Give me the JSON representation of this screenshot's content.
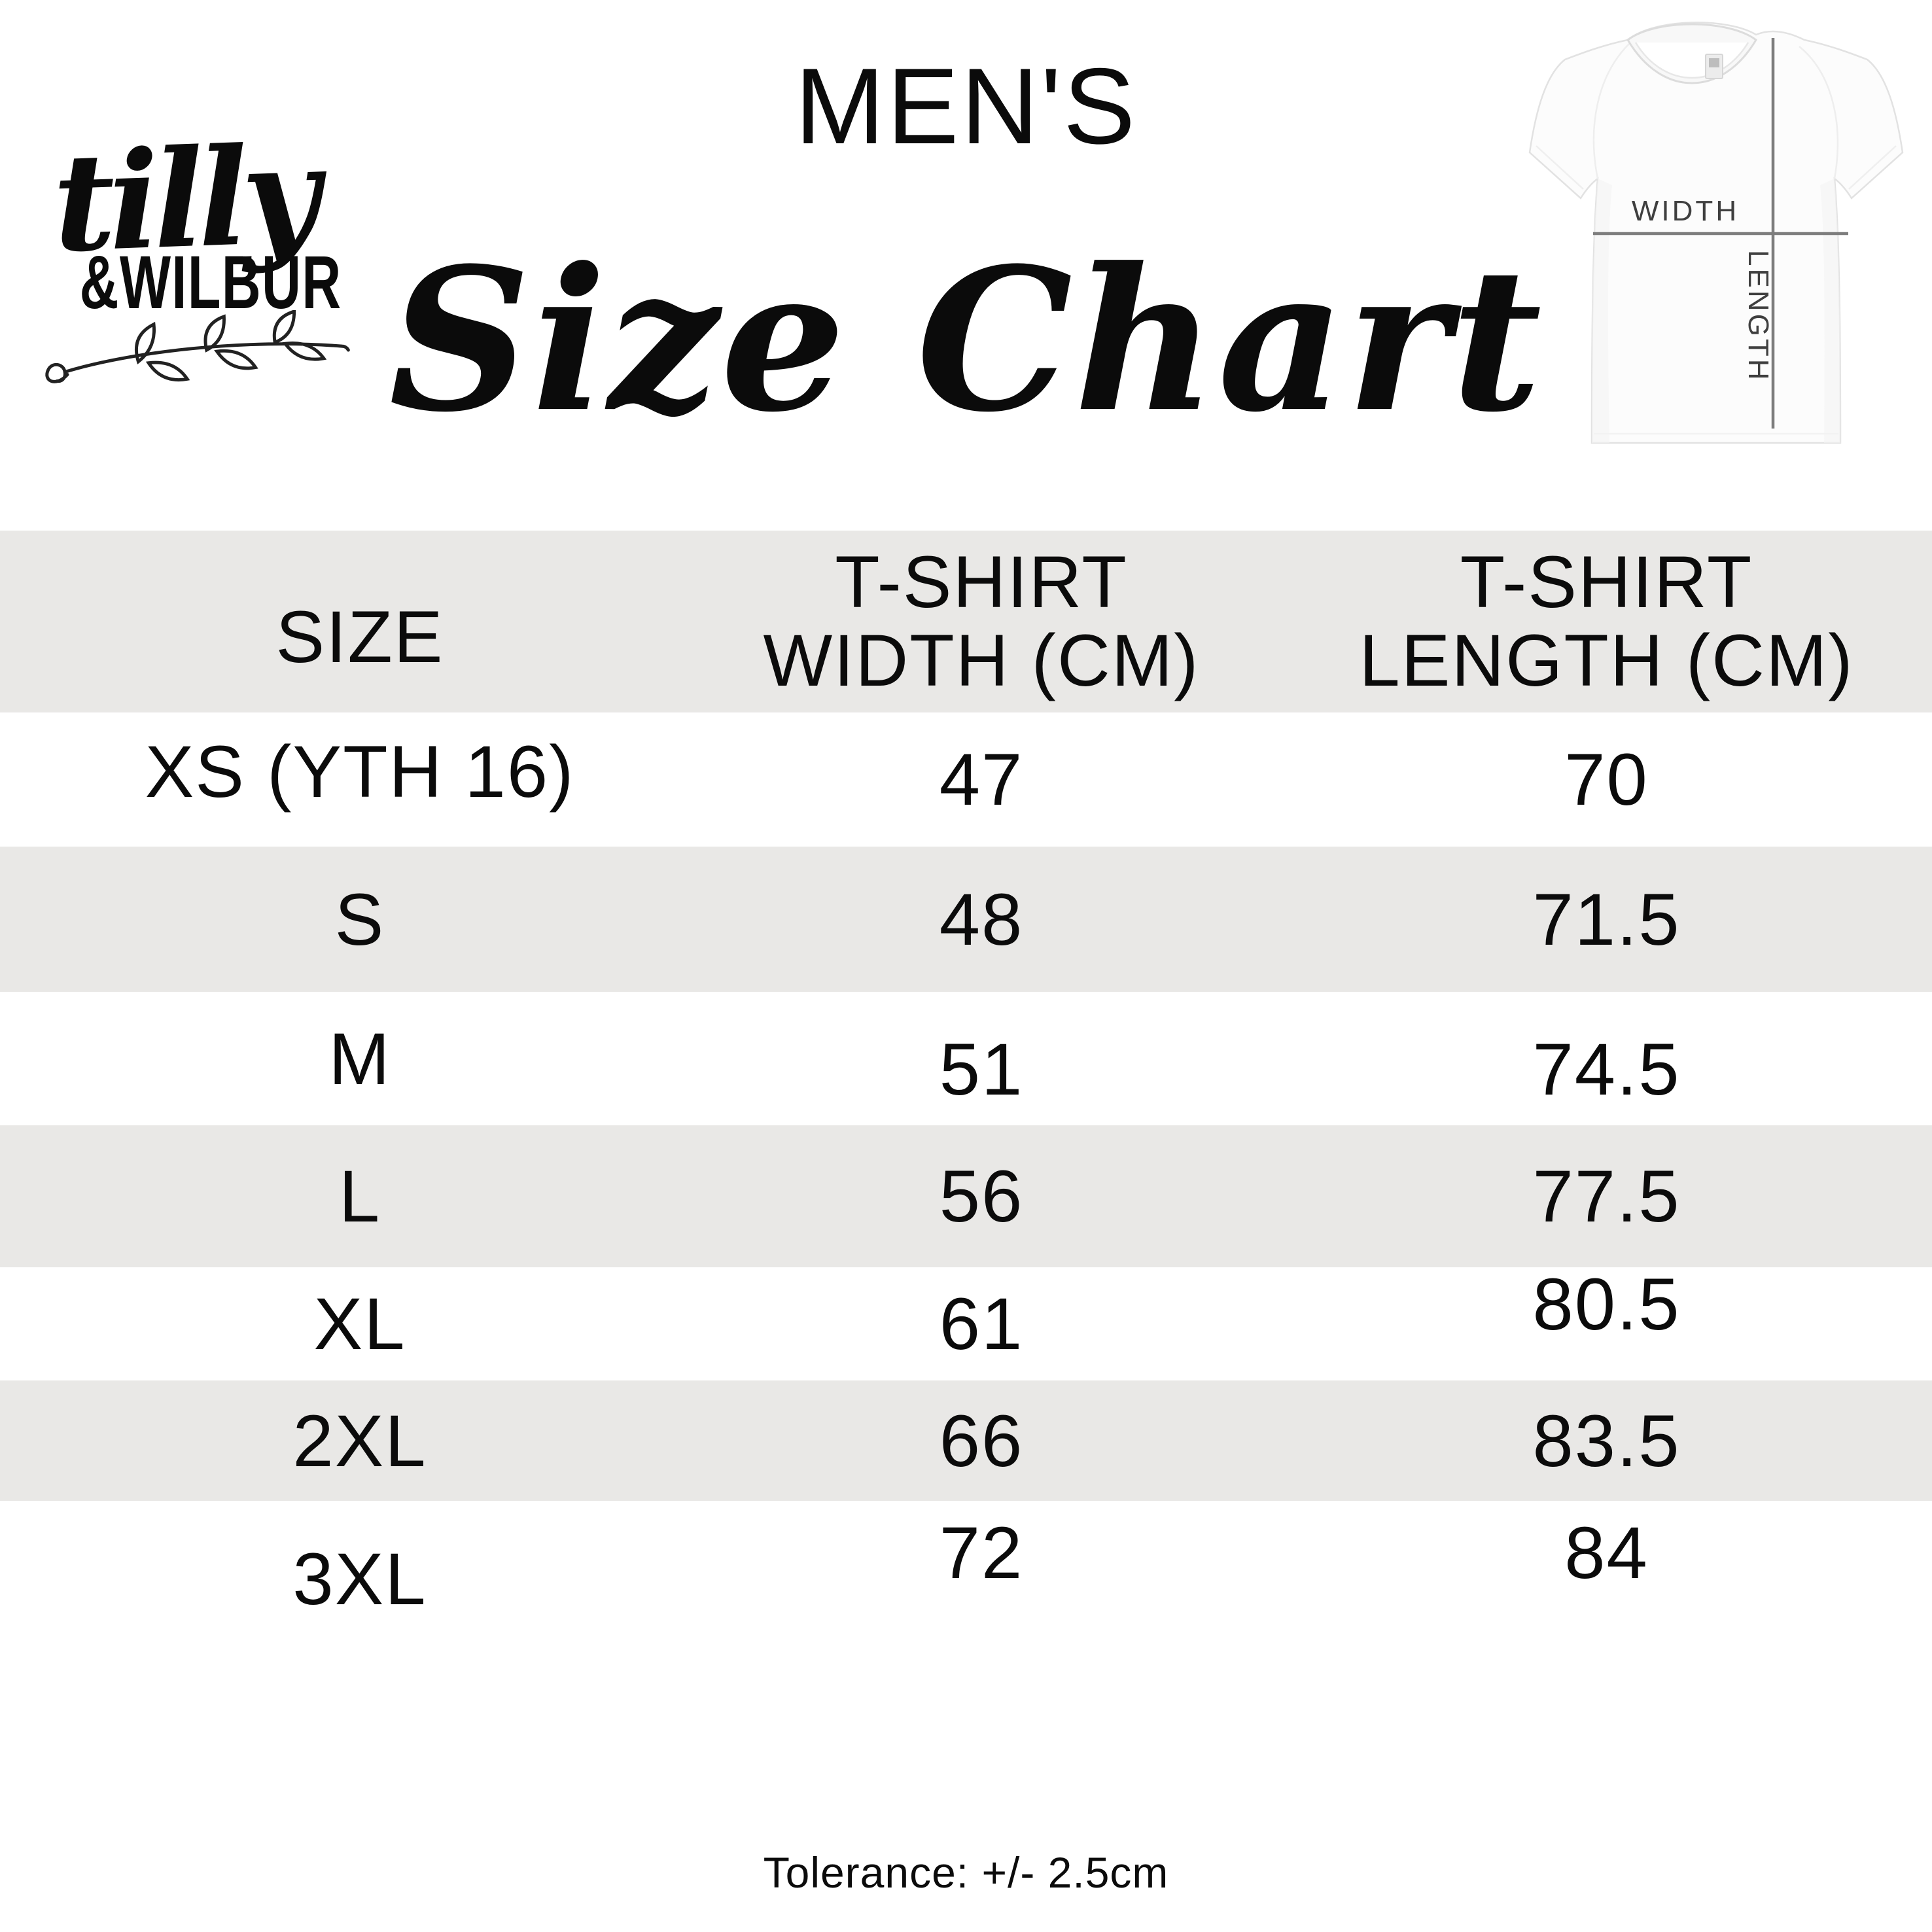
{
  "brand": {
    "script_name": "tilly",
    "caps_name": "&WILBUR"
  },
  "page": {
    "category": "MEN'S",
    "title": "Size Chart"
  },
  "diagram": {
    "width_label": "WIDTH",
    "length_label": "LENGTH"
  },
  "table": {
    "columns": [
      "SIZE",
      "T-SHIRT\nWIDTH (CM)",
      "T-SHIRT\nLENGTH (CM)"
    ],
    "rows": [
      {
        "size": "XS (YTH 16)",
        "width_cm": "47",
        "length_cm": "70"
      },
      {
        "size": "S",
        "width_cm": "48",
        "length_cm": "71.5"
      },
      {
        "size": "M",
        "width_cm": "51",
        "length_cm": "74.5"
      },
      {
        "size": "L",
        "width_cm": "56",
        "length_cm": "77.5"
      },
      {
        "size": "XL",
        "width_cm": "61",
        "length_cm": "80.5"
      },
      {
        "size": "2XL",
        "width_cm": "66",
        "length_cm": "83.5"
      },
      {
        "size": "3XL",
        "width_cm": "72",
        "length_cm": "84"
      }
    ]
  },
  "footer": {
    "tolerance_note": "Tolerance: +/- 2.5cm"
  },
  "colors": {
    "row_band": "#e9e8e6",
    "text": "#0b0b0b",
    "shirt_line": "#7d7d7d",
    "shirt_label_text": "#3f3f3f"
  }
}
